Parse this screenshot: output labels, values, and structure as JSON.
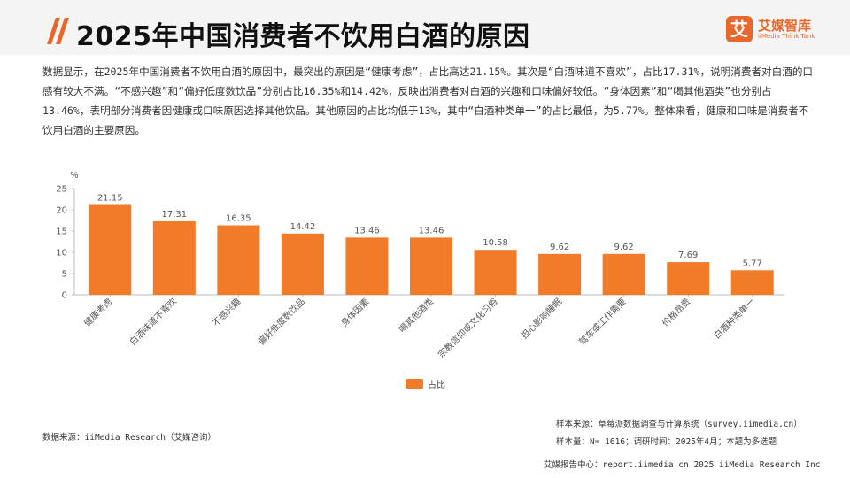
{
  "page": {
    "title": "2025年中国消费者不饮用白酒的原因",
    "summary": "数据显示，在2025年中国消费者不饮用白酒的原因中，最突出的原因是“健康考虑”，占比高达21.15%。其次是“白酒味道不喜欢”，占比17.31%，说明消费者对白酒的口感有较大不满。“不感兴趣”和“偏好低度数饮品”分别占比16.35%和14.42%，反映出消费者对白酒的兴趣和口味偏好较低。“身体因素”和“喝其他酒类”也分别占13.46%，表明部分消费者因健康或口味原因选择其他饮品。其他原因的占比均低于13%，其中“白酒种类单一”的占比最低，为5.77%。整体来看，健康和口味是消费者不饮用白酒的主要原因。"
  },
  "logo": {
    "mark": "艾",
    "name": "艾媒智库",
    "tagline": "iiMedia Think Tank"
  },
  "sources": {
    "data_source": "数据来源：iiMedia Research（艾媒咨询）",
    "sample_source": "样本来源：草莓派数据调查与计算系统（survey.iimedia.cn）",
    "sample_size": "样本量：N= 1616；调研时间：2025年4月；本题为多选题"
  },
  "footer": {
    "text": "艾媒报告中心：report.iimedia.cn   2025 iiMedia Research Inc"
  },
  "colors": {
    "bar": "#f27b2a",
    "accent": "#e8672a"
  },
  "chart_data": {
    "type": "bar",
    "title": "",
    "xlabel": "",
    "ylabel": "%",
    "ylim": [
      0,
      25
    ],
    "yticks": [
      0,
      5,
      10,
      15,
      20,
      25
    ],
    "grid": false,
    "legend_position": "bottom",
    "categories": [
      "健康考虑",
      "白酒味道不喜欢",
      "不感兴趣",
      "偏好低度数饮品",
      "身体因素",
      "喝其他酒类",
      "宗教信仰或文化习俗",
      "担心影响睡眠",
      "驾车或工作需要",
      "价格昂贵",
      "白酒种类单一"
    ],
    "series": [
      {
        "name": "占比",
        "values": [
          21.15,
          17.31,
          16.35,
          14.42,
          13.46,
          13.46,
          10.58,
          9.62,
          9.62,
          7.69,
          5.77
        ]
      }
    ]
  }
}
